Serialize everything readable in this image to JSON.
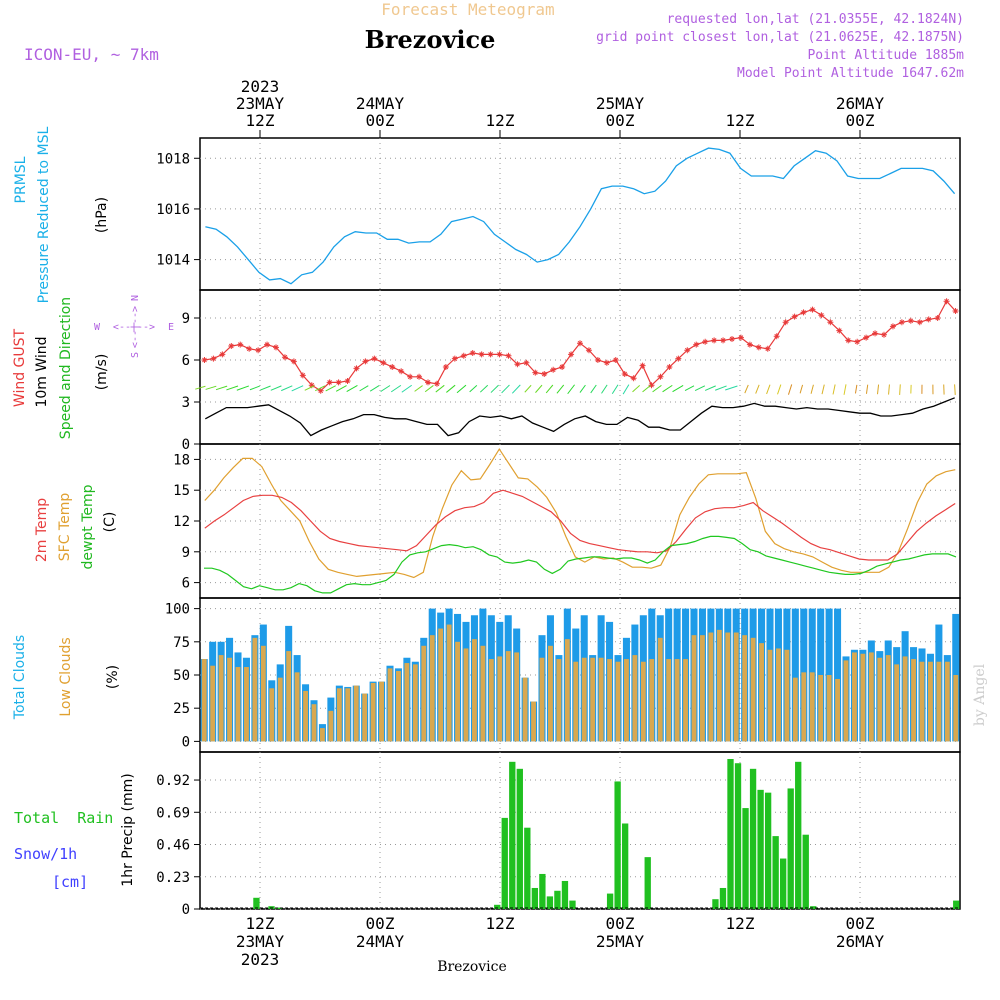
{
  "header": {
    "supertitle": "Forecast Meteogram",
    "location": "Brezovice",
    "model": "ICON-EU, ~ 7km",
    "requested": "requested lon,lat (21.0355E, 42.1824N)",
    "gridpoint": "grid point closest lon,lat (21.0625E, 42.1875N)",
    "point_alt": "Point Altitude 1885m",
    "model_alt": "Model Point Altitude 1647.62m",
    "footer": "Brezovice",
    "watermark": "by Angel"
  },
  "time_axis_top": [
    {
      "line1": "2023",
      "line2": "23MAY",
      "line3": "12Z"
    },
    {
      "line1": "",
      "line2": "24MAY",
      "line3": "00Z"
    },
    {
      "line1": "",
      "line2": "",
      "line3": "12Z"
    },
    {
      "line1": "",
      "line2": "25MAY",
      "line3": "00Z"
    },
    {
      "line1": "",
      "line2": "",
      "line3": "12Z"
    },
    {
      "line1": "",
      "line2": "26MAY",
      "line3": "00Z"
    }
  ],
  "time_axis_bottom": [
    {
      "line1": "12Z",
      "line2": "23MAY",
      "line3": "2023"
    },
    {
      "line1": "00Z",
      "line2": "24MAY",
      "line3": ""
    },
    {
      "line1": "12Z",
      "line2": "",
      "line3": ""
    },
    {
      "line1": "00Z",
      "line2": "25MAY",
      "line3": ""
    },
    {
      "line1": "12Z",
      "line2": "",
      "line3": ""
    },
    {
      "line1": "00Z",
      "line2": "26MAY",
      "line3": ""
    }
  ],
  "panels": {
    "pressure": {
      "label1": "PRMSL",
      "label2": "Pressure Reduced to MSL",
      "unit": "(hPa)",
      "ticks": [
        "1014",
        "1016",
        "1018"
      ]
    },
    "wind": {
      "label_gust": "Wind GUST",
      "label_wind": "10m Wind",
      "label_dir": "Speed and Direction",
      "unit": "(m/s)",
      "ticks": [
        "0",
        "3",
        "6",
        "9"
      ],
      "compass_n": "N",
      "compass_s": "S",
      "compass_w": "W",
      "compass_e": "E",
      "compass_mid": "<--|-->"
    },
    "temp": {
      "label_2m": "2m Temp",
      "label_sfc": "SFC Temp",
      "label_dew": "dewpt Temp",
      "unit": "(C)",
      "ticks": [
        "6",
        "9",
        "12",
        "15",
        "18"
      ]
    },
    "clouds": {
      "label_total": "Total Clouds",
      "label_low": "Low Clouds",
      "unit": "(%)",
      "ticks": [
        "0",
        "25",
        "50",
        "75",
        "100"
      ]
    },
    "precip": {
      "label_rain": "Total  Rain",
      "label_snow": "Snow/1h",
      "label_cm": "[cm]",
      "unit": "1hr Precip (mm)",
      "ticks": [
        "0",
        "0.23",
        "0.46",
        "0.69",
        "0.92"
      ]
    }
  },
  "colors": {
    "pressure": "#1aa0e8",
    "gust": "#e83a3a",
    "wind": "#000000",
    "t2m": "#e84040",
    "tsfc": "#e0a030",
    "dew": "#20c820",
    "cloud_total": "#1e9be8",
    "cloud_low": "#d8a850",
    "rain": "#20c020",
    "snow": "#4040ff",
    "label_cyan": "#1ab0e8",
    "label_red": "#e83a3a",
    "label_green": "#20b820",
    "label_orange": "#e0a030",
    "label_purple": "#b060e0"
  },
  "chart_data": {
    "type": "line",
    "x_unit": "forecast hour from 23MAY 2023 06Z",
    "x_ticks_hours": [
      6,
      18,
      30,
      42,
      54,
      66
    ],
    "pressure_hpa": [
      1015.3,
      1015.2,
      1014.9,
      1014.5,
      1014.0,
      1013.5,
      1013.2,
      1013.25,
      1013.05,
      1013.4,
      1013.5,
      1013.9,
      1014.5,
      1014.9,
      1015.1,
      1015.05,
      1015.05,
      1014.8,
      1014.8,
      1014.65,
      1014.7,
      1014.7,
      1015.0,
      1015.5,
      1015.6,
      1015.7,
      1015.5,
      1015.0,
      1014.7,
      1014.4,
      1014.2,
      1013.9,
      1014.0,
      1014.2,
      1014.7,
      1015.3,
      1016.0,
      1016.8,
      1016.9,
      1016.9,
      1016.8,
      1016.6,
      1016.7,
      1017.1,
      1017.7,
      1018.0,
      1018.2,
      1018.4,
      1018.35,
      1018.2,
      1017.6,
      1017.3,
      1017.3,
      1017.3,
      1017.2,
      1017.7,
      1018.0,
      1018.3,
      1018.2,
      1017.9,
      1017.3,
      1017.2,
      1017.2,
      1017.2,
      1017.4,
      1017.6,
      1017.6,
      1017.6,
      1017.5,
      1017.1,
      1016.6
    ],
    "wind_gust_ms": [
      6.0,
      6.1,
      6.4,
      7.0,
      7.1,
      6.8,
      6.7,
      7.1,
      6.9,
      6.2,
      5.9,
      4.9,
      4.2,
      3.8,
      4.4,
      4.4,
      4.5,
      5.4,
      5.9,
      6.1,
      5.8,
      5.5,
      5.2,
      4.8,
      4.8,
      4.4,
      4.3,
      5.5,
      6.1,
      6.3,
      6.5,
      6.4,
      6.4,
      6.4,
      6.3,
      5.7,
      5.8,
      5.1,
      5.0,
      5.3,
      5.5,
      6.4,
      7.2,
      6.7,
      6.0,
      5.8,
      6.0,
      5.0,
      4.7,
      5.6,
      4.2,
      4.8,
      5.5,
      6.1,
      6.7,
      7.1,
      7.3,
      7.4,
      7.4,
      7.5,
      7.6,
      7.1,
      6.9,
      6.8,
      7.7,
      8.7,
      9.1,
      9.4,
      9.6,
      9.2,
      8.7,
      8.1,
      7.4,
      7.3,
      7.6,
      7.9,
      7.8,
      8.4,
      8.7,
      8.8,
      8.7,
      8.9,
      9.0,
      10.2,
      9.5
    ],
    "wind_speed_ms": [
      1.8,
      2.2,
      2.6,
      2.6,
      2.6,
      2.7,
      2.8,
      2.4,
      2.0,
      1.5,
      0.6,
      1.0,
      1.3,
      1.6,
      1.8,
      2.1,
      2.1,
      1.9,
      1.8,
      1.8,
      1.6,
      1.4,
      1.4,
      0.6,
      0.8,
      1.6,
      2.0,
      1.9,
      2.0,
      1.8,
      2.0,
      1.5,
      1.2,
      0.9,
      1.4,
      1.8,
      2.0,
      1.6,
      1.4,
      1.4,
      1.9,
      1.7,
      1.2,
      1.2,
      1.0,
      1.0,
      1.6,
      2.2,
      2.7,
      2.6,
      2.6,
      2.7,
      2.9,
      2.7,
      2.7,
      2.6,
      2.5,
      2.6,
      2.5,
      2.5,
      2.4,
      2.3,
      2.2,
      2.2,
      2.0,
      2.0,
      2.1,
      2.2,
      2.5,
      2.7,
      3.0,
      3.3
    ],
    "temp_2m_c": [
      11.3,
      12.0,
      12.6,
      13.3,
      14.0,
      14.4,
      14.5,
      14.5,
      14.3,
      13.8,
      13.0,
      12.0,
      11.0,
      10.3,
      10.0,
      9.8,
      9.6,
      9.5,
      9.4,
      9.3,
      9.2,
      9.1,
      9.6,
      10.6,
      11.6,
      12.4,
      13.0,
      13.3,
      13.4,
      13.8,
      14.7,
      15.0,
      14.7,
      14.4,
      13.9,
      13.4,
      12.9,
      12.0,
      10.8,
      10.1,
      9.8,
      9.6,
      9.4,
      9.2,
      9.1,
      9.0,
      9.0,
      8.9,
      9.1,
      10.0,
      11.2,
      12.3,
      12.9,
      13.2,
      13.3,
      13.3,
      13.5,
      13.8,
      13.0,
      12.4,
      11.8,
      11.1,
      10.4,
      9.8,
      9.4,
      9.2,
      8.9,
      8.6,
      8.3,
      8.2,
      8.2,
      8.2,
      8.8,
      9.9,
      11.0,
      11.8,
      12.5,
      13.1,
      13.7
    ],
    "temp_sfc_c": [
      14.0,
      15.0,
      16.2,
      17.2,
      18.1,
      18.1,
      17.3,
      15.6,
      14.0,
      13.0,
      12.0,
      10.0,
      8.3,
      7.3,
      7.0,
      6.8,
      6.6,
      6.7,
      6.8,
      6.9,
      7.0,
      6.8,
      6.5,
      7.0,
      10.5,
      13.2,
      15.5,
      16.9,
      16.0,
      16.1,
      17.5,
      19.0,
      17.6,
      16.2,
      16.1,
      15.3,
      14.3,
      12.8,
      10.5,
      8.5,
      8.0,
      8.5,
      8.3,
      8.4,
      8.0,
      7.5,
      7.5,
      7.4,
      7.7,
      9.5,
      12.6,
      14.3,
      15.6,
      16.5,
      16.6,
      16.6,
      16.6,
      16.7,
      14.2,
      11.0,
      9.8,
      9.3,
      9.0,
      8.8,
      8.5,
      8.0,
      7.5,
      7.2,
      7.0,
      7.0,
      7.0,
      7.0,
      7.5,
      9.0,
      11.3,
      13.8,
      15.6,
      16.4,
      16.8,
      17.0
    ],
    "temp_dew_c": [
      7.4,
      7.4,
      7.2,
      6.8,
      6.2,
      5.6,
      5.4,
      5.7,
      5.5,
      5.3,
      5.3,
      5.5,
      5.9,
      5.7,
      5.2,
      5.0,
      5.0,
      5.4,
      5.8,
      5.9,
      5.8,
      5.8,
      6.0,
      6.2,
      6.8,
      8.0,
      8.7,
      8.9,
      9.0,
      9.3,
      9.6,
      9.7,
      9.6,
      9.4,
      9.5,
      9.2,
      8.7,
      8.5,
      8.0,
      7.9,
      8.0,
      8.2,
      8.0,
      7.3,
      6.9,
      7.3,
      8.1,
      8.3,
      8.4,
      8.5,
      8.5,
      8.4,
      8.3,
      8.4,
      8.4,
      8.2,
      7.9,
      8.2,
      9.0,
      9.6,
      9.7,
      9.8,
      10.0,
      10.3,
      10.5,
      10.5,
      10.4,
      10.3,
      9.8,
      9.2,
      9.0,
      8.6,
      8.4,
      8.2,
      8.0,
      7.8,
      7.6,
      7.4,
      7.2,
      7.0,
      6.9,
      6.8,
      6.8,
      6.9,
      7.2,
      7.6,
      7.8,
      8.0,
      8.2,
      8.3,
      8.5,
      8.7,
      8.8,
      8.8,
      8.8,
      8.5
    ],
    "cloud_total_pct": [
      62,
      75,
      75,
      78,
      67,
      63,
      80,
      88,
      46,
      58,
      87,
      65,
      43,
      31,
      13,
      33,
      42,
      41,
      42,
      36,
      45,
      45,
      57,
      55,
      63,
      60,
      78,
      100,
      97,
      100,
      96,
      90,
      95,
      100,
      95,
      90,
      95,
      85,
      48,
      30,
      80,
      95,
      65,
      100,
      85,
      95,
      65,
      95,
      90,
      65,
      78,
      88,
      95,
      100,
      95,
      100,
      100,
      100,
      100,
      100,
      100,
      100,
      100,
      100,
      100,
      100,
      100,
      100,
      100,
      100,
      100,
      100,
      100,
      100,
      100,
      100,
      64,
      69,
      69,
      76,
      68,
      76,
      71,
      83,
      71,
      70,
      66,
      88,
      65,
      96
    ],
    "cloud_low_pct": [
      62,
      57,
      65,
      63,
      56,
      56,
      78,
      72,
      40,
      48,
      68,
      52,
      38,
      28,
      10,
      23,
      40,
      40,
      42,
      36,
      44,
      45,
      55,
      53,
      59,
      58,
      72,
      80,
      85,
      88,
      75,
      70,
      77,
      72,
      62,
      64,
      68,
      67,
      48,
      30,
      63,
      72,
      62,
      77,
      60,
      63,
      63,
      63,
      62,
      60,
      62,
      65,
      60,
      62,
      78,
      62,
      62,
      62,
      80,
      80,
      82,
      84,
      82,
      82,
      80,
      78,
      74,
      69,
      70,
      69,
      48,
      52,
      52,
      50,
      50,
      47,
      61,
      67,
      66,
      67,
      63,
      65,
      58,
      64,
      62,
      60,
      60,
      60,
      60,
      50
    ],
    "precip_mm": [
      0,
      0,
      0,
      0,
      0,
      0,
      0,
      0.08,
      0,
      0.02,
      0.01,
      0,
      0,
      0,
      0,
      0,
      0,
      0,
      0,
      0,
      0,
      0,
      0,
      0,
      0,
      0,
      0,
      0,
      0,
      0,
      0,
      0,
      0,
      0,
      0,
      0,
      0,
      0,
      0,
      0.03,
      0.65,
      1.05,
      1.0,
      0.58,
      0.15,
      0.25,
      0.09,
      0.13,
      0.2,
      0.06,
      0,
      0,
      0,
      0,
      0.11,
      0.91,
      0.61,
      0,
      0,
      0.37,
      0,
      0,
      0,
      0,
      0,
      0,
      0,
      0,
      0.07,
      0.15,
      1.07,
      1.04,
      0.72,
      1.0,
      0.85,
      0.83,
      0.52,
      0.36,
      0.86,
      1.05,
      0.53,
      0.02,
      0,
      0,
      0,
      0,
      0,
      0,
      0,
      0,
      0,
      0,
      0,
      0,
      0,
      0,
      0,
      0,
      0,
      0,
      0.06
    ]
  }
}
